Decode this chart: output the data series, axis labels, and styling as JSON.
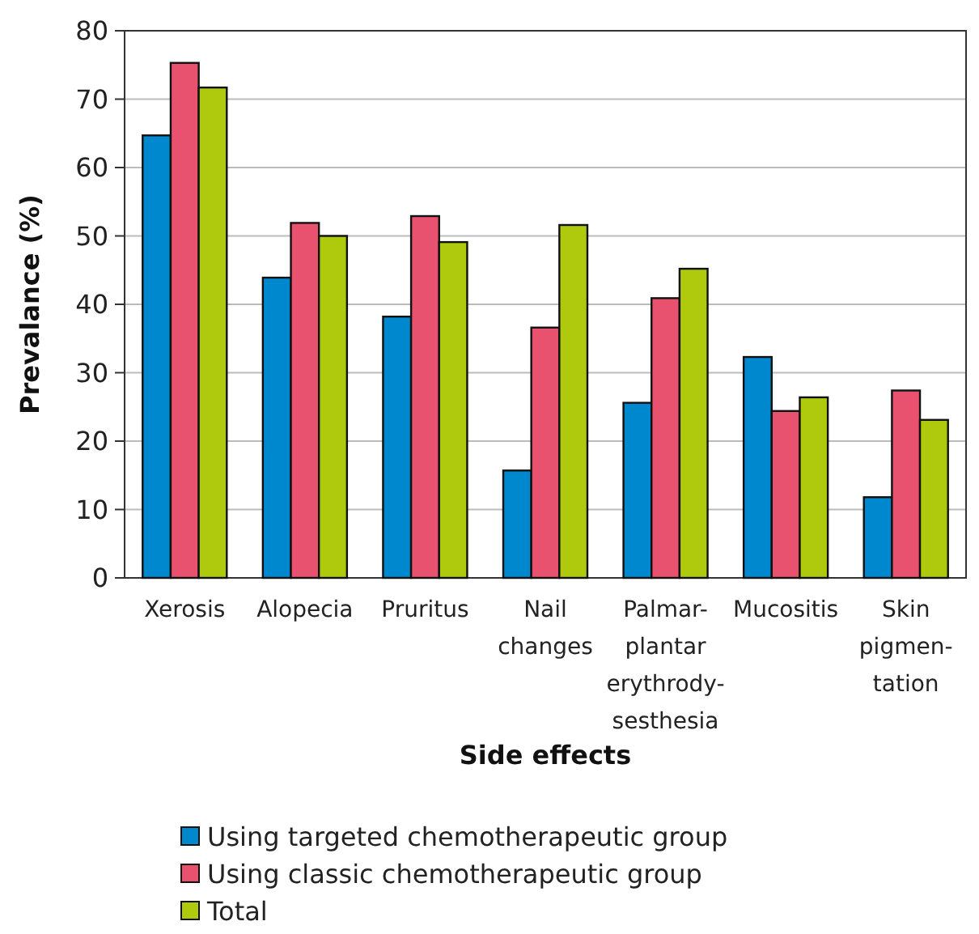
{
  "chart_data": {
    "type": "bar",
    "xlabel": "Side effects",
    "ylabel": "Prevalance (%)",
    "categories": [
      "Xerosis",
      "Alopecia",
      "Pruritus",
      "Nail\nchanges",
      "Palmar-\nplantar\nerythrody-\nsesthesia",
      "Mucositis",
      "Skin\npigmen-\ntation"
    ],
    "series": [
      {
        "name": "Using targeted chemotherapeutic group",
        "color": "#0088cf",
        "values": [
          64.7,
          43.9,
          38.2,
          15.7,
          25.6,
          32.3,
          11.8
        ]
      },
      {
        "name": "Using classic chemotherapeutic group",
        "color": "#e8526e",
        "values": [
          75.3,
          51.9,
          52.9,
          36.6,
          40.9,
          24.4,
          27.4
        ]
      },
      {
        "name": "Total",
        "color": "#afc90d",
        "values": [
          71.7,
          50,
          49.1,
          51.6,
          45.2,
          26.4,
          23.1
        ]
      }
    ],
    "ylim": [
      0,
      80
    ],
    "yticks": [
      0,
      10,
      20,
      30,
      40,
      50,
      60,
      70,
      80
    ],
    "grid": "y",
    "legend": "bottom"
  }
}
